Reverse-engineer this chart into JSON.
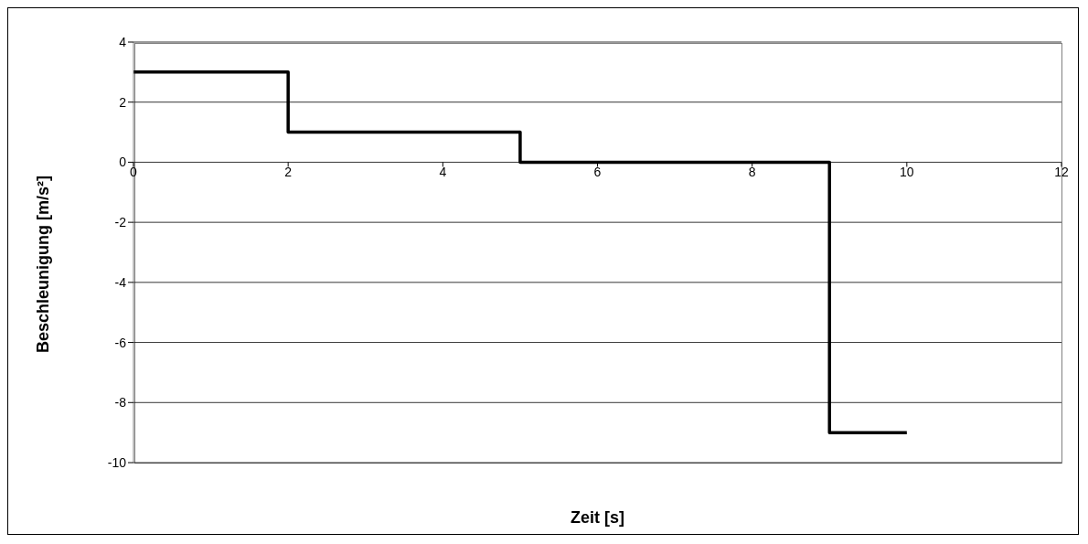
{
  "chart_data": {
    "type": "step",
    "xlabel": "Zeit [s]",
    "ylabel": "Beschleunigung [m/s²]",
    "x": [
      0,
      2,
      5,
      9,
      10
    ],
    "series": [
      {
        "color": "#000000",
        "values": [
          3,
          1,
          0,
          -9,
          -9
        ]
      }
    ],
    "xlim": [
      0,
      12
    ],
    "xticks": [
      0,
      2,
      4,
      6,
      8,
      10,
      12
    ],
    "ylim": [
      -10,
      4
    ],
    "yticks": [
      -10,
      -8,
      -6,
      -4,
      -2,
      0,
      2,
      4
    ],
    "grid": "y",
    "legend": false,
    "marker": "none",
    "line_style": "solid"
  }
}
